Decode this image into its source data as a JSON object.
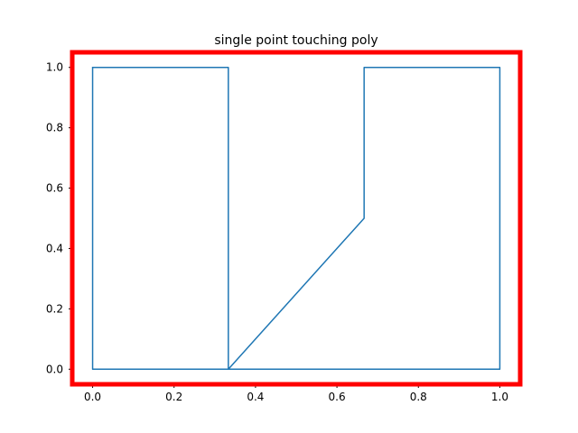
{
  "chart_data": {
    "type": "line",
    "title": "single point touching poly",
    "xlabel": "",
    "ylabel": "",
    "xlim": [
      -0.05,
      1.05
    ],
    "ylim": [
      -0.05,
      1.05
    ],
    "x_ticks": [
      0.0,
      0.2,
      0.4,
      0.6,
      0.8,
      1.0
    ],
    "x_tick_labels": [
      "0.0",
      "0.2",
      "0.4",
      "0.6",
      "0.8",
      "1.0"
    ],
    "y_ticks": [
      0.0,
      0.2,
      0.4,
      0.6,
      0.8,
      1.0
    ],
    "y_tick_labels": [
      "0.0",
      "0.2",
      "0.4",
      "0.6",
      "0.8",
      "1.0"
    ],
    "grid": false,
    "series": [
      {
        "color": "#1f77b4",
        "x": [
          0.0,
          0.3333,
          0.3333,
          0.6667,
          0.6667,
          1.0,
          1.0,
          0.0,
          0.0
        ],
        "y": [
          1.0,
          1.0,
          0.0,
          0.5,
          1.0,
          1.0,
          0.0,
          0.0,
          1.0
        ]
      }
    ],
    "frame_color": "#ff0000"
  }
}
